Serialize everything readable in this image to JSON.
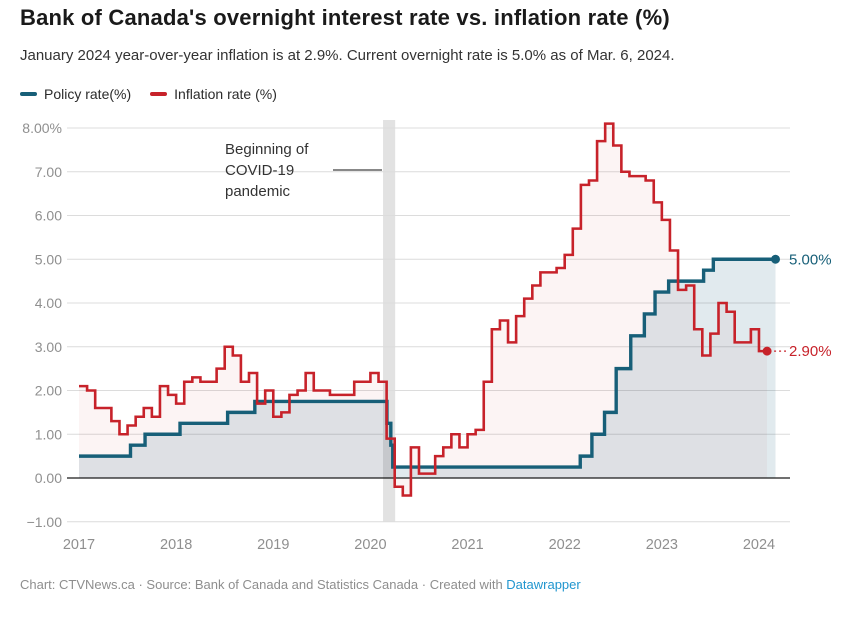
{
  "header": {
    "title": "Bank of Canada's overnight interest rate vs. inflation rate (%)",
    "subtitle": "January 2024 year-over-year inflation is at 2.9%. Current overnight rate is 5.0% as of Mar. 6, 2024."
  },
  "legend": [
    {
      "label": "Policy rate(%)",
      "color": "#175f78"
    },
    {
      "label": "Inflation rate (%)",
      "color": "#c7222a"
    }
  ],
  "footer": {
    "prefix": "Chart: CTVNews.ca · Source: Bank of Canada and Statistics Canada · Created with ",
    "link_label": "Datawrapper"
  },
  "chart_data": {
    "type": "line",
    "step": true,
    "title": "Bank of Canada's overnight interest rate vs. inflation rate (%)",
    "xlabel": "",
    "ylabel": "",
    "xlim": [
      2016.88,
      2024.35
    ],
    "ylim": [
      -1,
      8.2
    ],
    "grid": true,
    "legend_position": "top-left",
    "x_ticks": [
      2017,
      2018,
      2019,
      2020,
      2021,
      2022,
      2023,
      2024
    ],
    "y_ticks": [
      {
        "v": 8,
        "label": "8.00%"
      },
      {
        "v": 7,
        "label": "7.00"
      },
      {
        "v": 6,
        "label": "6.00"
      },
      {
        "v": 5,
        "label": "5.00"
      },
      {
        "v": 4,
        "label": "4.00"
      },
      {
        "v": 3,
        "label": "3.00"
      },
      {
        "v": 2,
        "label": "2.00"
      },
      {
        "v": 1,
        "label": "1.00"
      },
      {
        "v": 0,
        "label": "0.00"
      },
      {
        "v": -1,
        "label": "−1.00"
      }
    ],
    "series": [
      {
        "name": "Policy rate(%)",
        "mode": "changepoints",
        "color": "#175f78",
        "fill": "rgba(23,95,120,0.13)",
        "line_width": 3.4,
        "points": [
          [
            2017.0,
            0.5
          ],
          [
            2017.53,
            0.75
          ],
          [
            2017.68,
            1.0
          ],
          [
            2018.04,
            1.25
          ],
          [
            2018.53,
            1.5
          ],
          [
            2018.81,
            1.75
          ],
          [
            2020.17,
            1.25
          ],
          [
            2020.21,
            0.75
          ],
          [
            2020.23,
            0.25
          ],
          [
            2022.16,
            0.5
          ],
          [
            2022.28,
            1.0
          ],
          [
            2022.41,
            1.5
          ],
          [
            2022.53,
            2.5
          ],
          [
            2022.68,
            3.25
          ],
          [
            2022.82,
            3.75
          ],
          [
            2022.93,
            4.25
          ],
          [
            2023.07,
            4.5
          ],
          [
            2023.43,
            4.75
          ],
          [
            2023.53,
            5.0
          ]
        ],
        "end_x": 2024.17,
        "end_label": "5.00%"
      },
      {
        "name": "Inflation rate (%)",
        "mode": "monthly",
        "color": "#c7222a",
        "fill": "rgba(199,34,42,0.05)",
        "line_width": 2.6,
        "start_year": 2017,
        "values": [
          2.1,
          2.0,
          1.6,
          1.6,
          1.3,
          1.0,
          1.2,
          1.4,
          1.6,
          1.4,
          2.1,
          1.9,
          1.7,
          2.2,
          2.3,
          2.2,
          2.2,
          2.5,
          3.0,
          2.8,
          2.2,
          2.4,
          1.7,
          2.0,
          1.4,
          1.5,
          1.9,
          2.0,
          2.4,
          2.0,
          2.0,
          1.9,
          1.9,
          1.9,
          2.2,
          2.2,
          2.4,
          2.2,
          0.9,
          -0.2,
          -0.4,
          0.7,
          0.1,
          0.1,
          0.5,
          0.7,
          1.0,
          0.7,
          1.0,
          1.1,
          2.2,
          3.4,
          3.6,
          3.1,
          3.7,
          4.1,
          4.4,
          4.7,
          4.7,
          4.8,
          5.1,
          5.7,
          6.7,
          6.8,
          7.7,
          8.1,
          7.6,
          7.0,
          6.9,
          6.9,
          6.8,
          6.3,
          5.9,
          5.2,
          4.3,
          4.4,
          3.4,
          2.8,
          3.3,
          4.0,
          3.8,
          3.1,
          3.1,
          3.4,
          2.9
        ],
        "end_label": "2.90%"
      }
    ],
    "annotations": {
      "covid_text": "Beginning of COVID-19 pandemic",
      "covid_band": {
        "x_from": 2020.13,
        "x_to": 2020.255,
        "color": "#e2e2e2"
      }
    }
  }
}
